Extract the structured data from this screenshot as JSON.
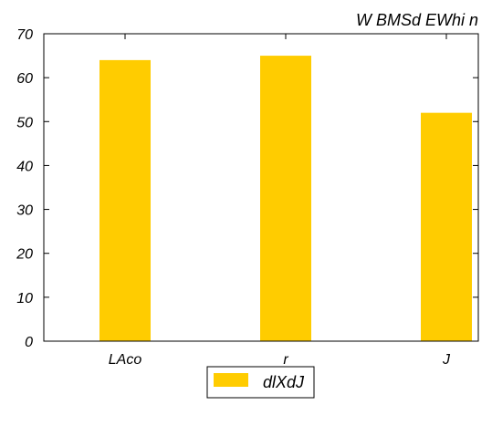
{
  "chart_data": {
    "type": "bar",
    "title": "W BMSd EWhi n",
    "xlabel": "",
    "ylabel": "",
    "categories": [
      "LAco",
      "r",
      "J"
    ],
    "series": [
      {
        "name": "dlXdJ",
        "values": [
          64,
          65,
          52
        ],
        "color": "#FFCC00"
      }
    ],
    "ylim": [
      0,
      70
    ],
    "yticks": [
      0,
      10,
      20,
      30,
      40,
      50,
      60,
      70
    ],
    "grid": false,
    "legend_position": "bottom-center"
  }
}
